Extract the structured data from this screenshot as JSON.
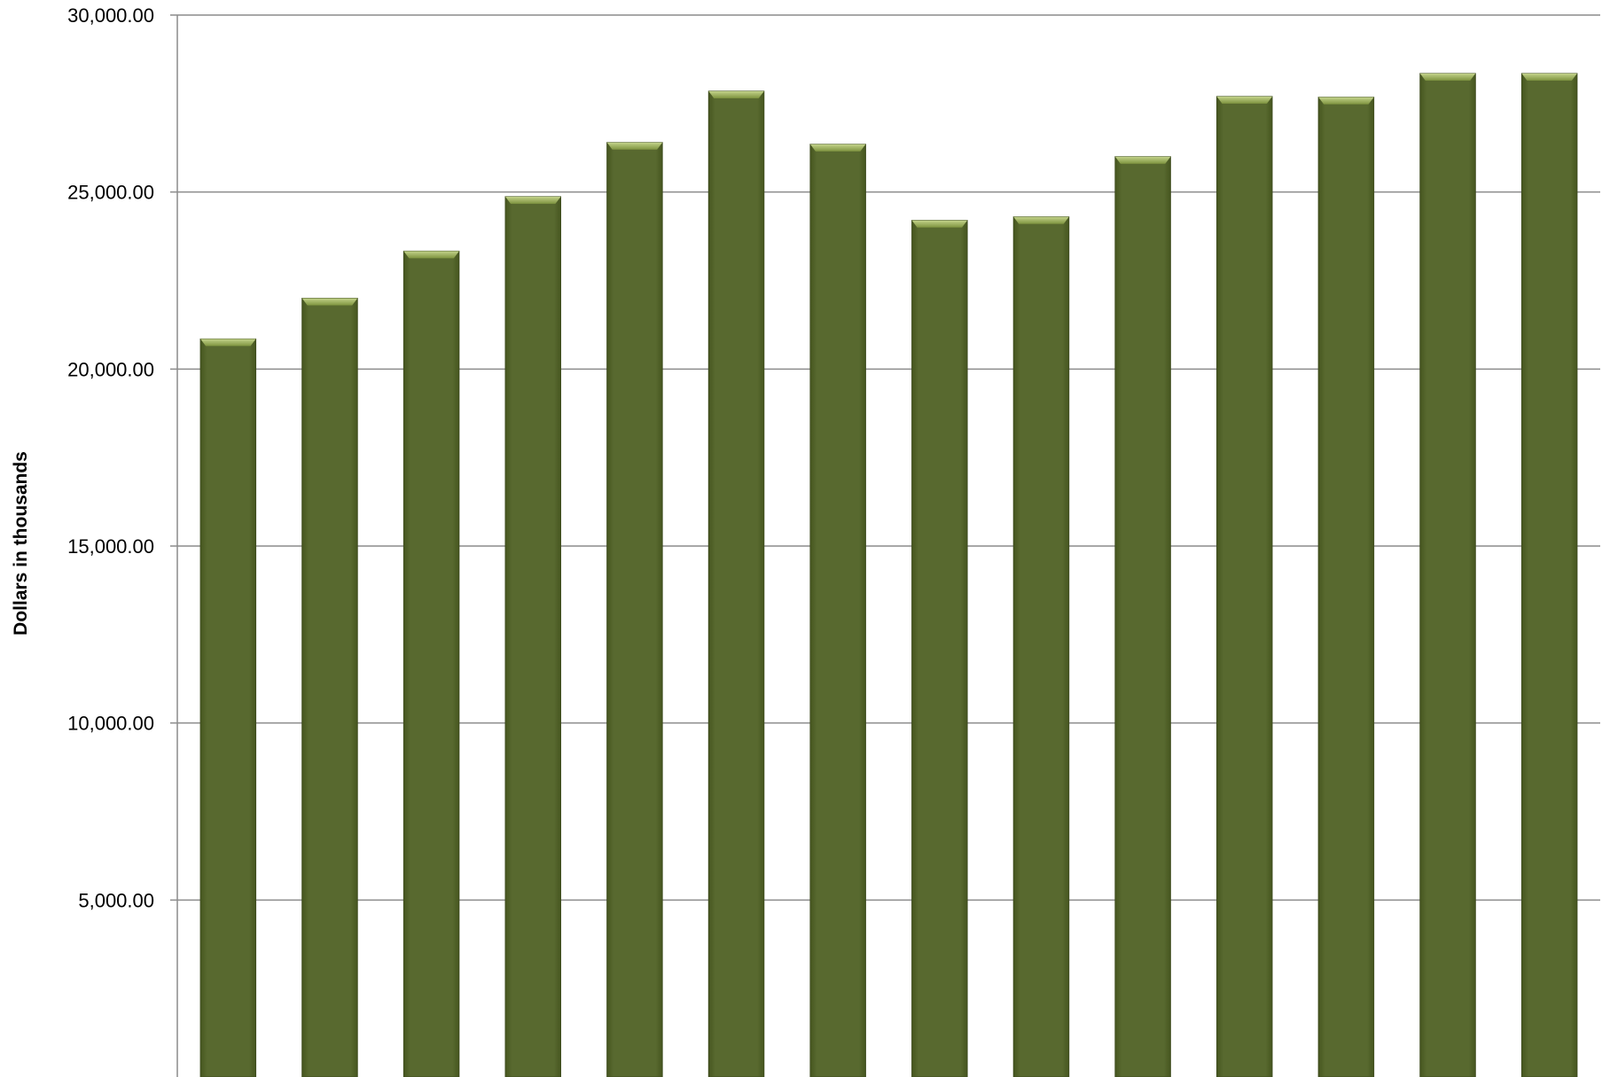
{
  "chart_data": {
    "type": "bar",
    "title": "",
    "xlabel": "",
    "ylabel": "Dollars in thousands",
    "ylim": [
      0,
      30000
    ],
    "y_ticks": [
      0,
      5000,
      10000,
      15000,
      20000,
      25000,
      30000
    ],
    "y_tick_labels": [
      "",
      "5,000.00",
      "10,000.00",
      "15,000.00",
      "20,000.00",
      "25,000.00",
      "30,000.00"
    ],
    "grid": true,
    "legend": "none",
    "categories": [
      "",
      "",
      "",
      "",
      "",
      "",
      "",
      "",
      "",
      "",
      "",
      "",
      "",
      ""
    ],
    "values": [
      20850,
      22000,
      23330,
      24870,
      26400,
      27850,
      26350,
      24200,
      24300,
      26000,
      27700,
      27680,
      28350,
      28350
    ],
    "colors": {
      "bar": "#58692f",
      "bar_top": "#a9bb6e",
      "bar_edge": "#3f4d1f"
    }
  }
}
